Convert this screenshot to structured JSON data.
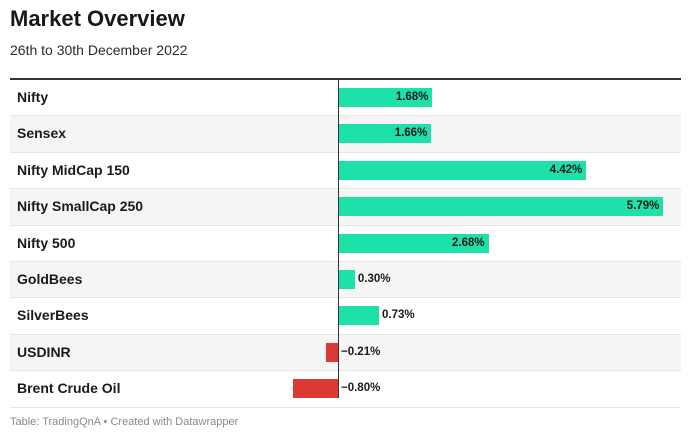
{
  "header": {
    "title": "Market Overview",
    "subtitle": "26th to 30th December 2022"
  },
  "footer": {
    "source": "Table: TradingQnA • Created with Datawrapper"
  },
  "colors": {
    "positive": "#1ee0a9",
    "negative": "#db3a34"
  },
  "chart_data": {
    "type": "bar",
    "orientation": "horizontal",
    "categories": [
      "Nifty",
      "Sensex",
      "Nifty MidCap 150",
      "Nifty SmallCap 250",
      "Nifty 500",
      "GoldBees",
      "SilverBees",
      "USDINR",
      "Brent Crude Oil"
    ],
    "values": [
      1.68,
      1.66,
      4.42,
      5.79,
      2.68,
      0.3,
      0.73,
      -0.21,
      -0.8
    ],
    "labels": [
      "1.68%",
      "1.66%",
      "4.42%",
      "5.79%",
      "2.68%",
      "0.30%",
      "0.73%",
      "−0.21%",
      "−0.80%"
    ],
    "unit": "%",
    "xlim": [
      -0.85,
      5.8
    ]
  }
}
